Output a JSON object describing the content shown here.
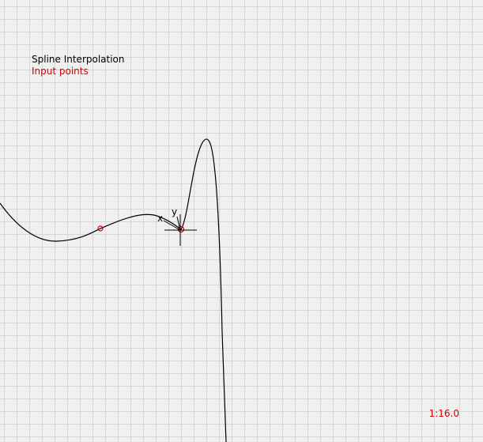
{
  "legend": {
    "title": "Spline Interpolation",
    "points_label": "Input points"
  },
  "zoom": {
    "label": "1:16.0"
  },
  "cursor_axes": {
    "x_label": "x",
    "y_label": "y"
  },
  "colors": {
    "background": "#f0f0f0",
    "grid": "#d6d6d6",
    "curve": "#000000",
    "input_points": "#d00000",
    "legend_title": "#000000",
    "legend_points": "#d00000",
    "zoom_label": "#d00000"
  },
  "icons": {
    "cursor": "crosshair-icon",
    "input_point": "circle-marker-icon"
  }
}
